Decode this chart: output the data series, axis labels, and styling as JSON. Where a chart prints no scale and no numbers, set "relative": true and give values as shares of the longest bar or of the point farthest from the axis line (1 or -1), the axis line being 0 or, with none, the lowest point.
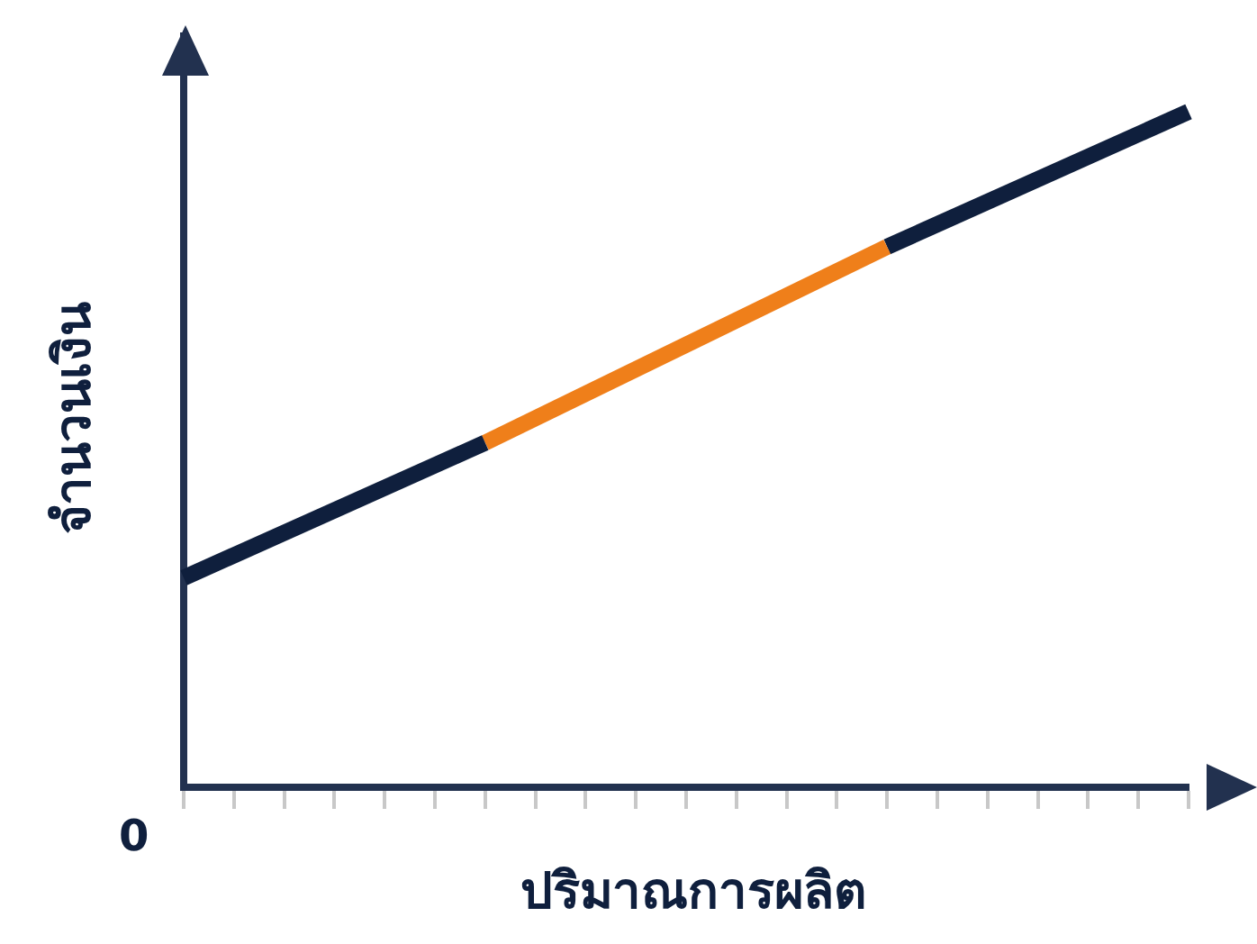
{
  "chart_data": {
    "type": "line",
    "relative": true,
    "xlabel": "ปริมาณการผลิต",
    "ylabel": "จำนวนเงิน",
    "annotations": [
      "0"
    ],
    "legend": false,
    "grid": false,
    "marker": "none",
    "line_style": "solid",
    "categories": [
      null,
      null,
      null,
      null,
      null,
      null,
      null,
      null,
      null,
      null,
      null,
      null,
      null,
      null,
      null,
      null,
      null,
      null,
      null,
      null,
      null
    ],
    "series": [
      {
        "color": "#0f1f3d",
        "values": [
          0.31,
          null,
          null,
          null,
          null,
          null,
          0.51,
          null,
          null,
          null,
          null,
          null,
          null,
          null,
          null,
          null,
          null,
          null,
          null,
          null,
          null
        ]
      },
      {
        "color": "#ef7f1a",
        "values": [
          null,
          null,
          null,
          null,
          null,
          null,
          0.51,
          null,
          null,
          null,
          null,
          null,
          null,
          null,
          0.8,
          null,
          null,
          null,
          null,
          null,
          null
        ]
      },
      {
        "color": "#0f1f3d",
        "values": [
          null,
          null,
          null,
          null,
          null,
          null,
          null,
          null,
          null,
          null,
          null,
          null,
          null,
          null,
          0.8,
          null,
          null,
          null,
          null,
          null,
          1
        ]
      }
    ]
  }
}
